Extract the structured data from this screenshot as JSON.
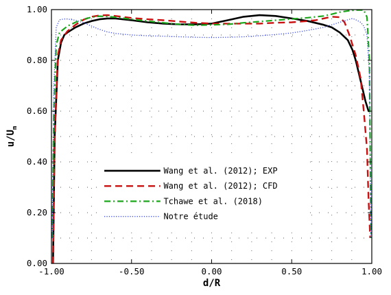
{
  "chart_data": {
    "type": "line",
    "title": "",
    "xlabel": "d/R",
    "ylabel_main": "u/U",
    "ylabel_sub": "m",
    "xlim": [
      -1.0,
      1.0
    ],
    "ylim": [
      0.0,
      1.0
    ],
    "x_ticks": [
      -1.0,
      -0.5,
      0.0,
      0.5,
      1.0
    ],
    "x_tick_labels": [
      "-1.00",
      "-0.50",
      "0.00",
      "0.50",
      "1.00"
    ],
    "y_ticks": [
      0.0,
      0.2,
      0.4,
      0.6,
      0.8,
      1.0
    ],
    "y_tick_labels": [
      "0.00",
      "0.20",
      "0.40",
      "0.60",
      "0.80",
      "1.00"
    ],
    "grid": "dotted",
    "legend_position": "lower-center",
    "series": [
      {
        "name": "Wang et al. (2012); EXP",
        "color": "#000000",
        "dash": "solid",
        "x": [
          -0.99,
          -0.98,
          -0.96,
          -0.94,
          -0.92,
          -0.9,
          -0.85,
          -0.8,
          -0.75,
          -0.7,
          -0.65,
          -0.6,
          -0.5,
          -0.4,
          -0.3,
          -0.2,
          -0.1,
          0.0,
          0.1,
          0.2,
          0.3,
          0.4,
          0.5,
          0.6,
          0.7,
          0.75,
          0.8,
          0.85,
          0.88,
          0.9,
          0.93,
          0.96,
          0.98,
          0.99
        ],
        "y": [
          0.0,
          0.5,
          0.8,
          0.87,
          0.9,
          0.91,
          0.93,
          0.945,
          0.955,
          0.962,
          0.965,
          0.965,
          0.958,
          0.95,
          0.945,
          0.942,
          0.942,
          0.945,
          0.958,
          0.972,
          0.978,
          0.975,
          0.965,
          0.955,
          0.94,
          0.93,
          0.91,
          0.88,
          0.84,
          0.8,
          0.72,
          0.64,
          0.6,
          0.6
        ]
      },
      {
        "name": "Wang et al. (2012); CFD",
        "color": "#c81010",
        "dash": "dashed",
        "x": [
          -0.99,
          -0.98,
          -0.96,
          -0.94,
          -0.9,
          -0.85,
          -0.8,
          -0.75,
          -0.7,
          -0.65,
          -0.6,
          -0.5,
          -0.4,
          -0.3,
          -0.2,
          -0.1,
          0.0,
          0.1,
          0.2,
          0.3,
          0.4,
          0.5,
          0.6,
          0.65,
          0.7,
          0.75,
          0.8,
          0.83,
          0.86,
          0.9,
          0.93,
          0.95,
          0.97,
          0.98,
          0.99
        ],
        "y": [
          0.0,
          0.5,
          0.82,
          0.88,
          0.915,
          0.94,
          0.96,
          0.972,
          0.977,
          0.978,
          0.975,
          0.967,
          0.962,
          0.958,
          0.953,
          0.948,
          0.945,
          0.945,
          0.945,
          0.945,
          0.948,
          0.95,
          0.955,
          0.958,
          0.965,
          0.972,
          0.97,
          0.95,
          0.9,
          0.82,
          0.73,
          0.6,
          0.45,
          0.25,
          0.1
        ]
      },
      {
        "name": "Tchawe et al. (2018)",
        "color": "#1aa51a",
        "dash": "dashdot",
        "x": [
          -0.995,
          -0.985,
          -0.97,
          -0.95,
          -0.92,
          -0.9,
          -0.85,
          -0.8,
          -0.75,
          -0.7,
          -0.65,
          -0.6,
          -0.5,
          -0.4,
          -0.3,
          -0.2,
          -0.1,
          0.0,
          0.1,
          0.2,
          0.3,
          0.4,
          0.5,
          0.6,
          0.7,
          0.75,
          0.8,
          0.85,
          0.9,
          0.95,
          0.97,
          0.985,
          0.995
        ],
        "y": [
          0.1,
          0.6,
          0.86,
          0.91,
          0.925,
          0.935,
          0.95,
          0.962,
          0.97,
          0.974,
          0.973,
          0.97,
          0.962,
          0.955,
          0.948,
          0.942,
          0.938,
          0.94,
          0.942,
          0.948,
          0.953,
          0.958,
          0.963,
          0.968,
          0.975,
          0.982,
          0.99,
          0.995,
          0.998,
          0.998,
          0.97,
          0.8,
          0.1
        ]
      },
      {
        "name": "Notre étude",
        "color": "#3344ee",
        "dash": "dotted",
        "x": [
          -0.995,
          -0.985,
          -0.97,
          -0.95,
          -0.92,
          -0.9,
          -0.85,
          -0.8,
          -0.75,
          -0.7,
          -0.65,
          -0.6,
          -0.5,
          -0.4,
          -0.3,
          -0.2,
          -0.1,
          0.0,
          0.1,
          0.2,
          0.3,
          0.4,
          0.5,
          0.6,
          0.7,
          0.75,
          0.8,
          0.85,
          0.88,
          0.9,
          0.93,
          0.95,
          0.97,
          0.985,
          0.995
        ],
        "y": [
          0.1,
          0.7,
          0.93,
          0.96,
          0.963,
          0.963,
          0.958,
          0.948,
          0.935,
          0.922,
          0.912,
          0.906,
          0.9,
          0.897,
          0.895,
          0.893,
          0.891,
          0.89,
          0.891,
          0.893,
          0.897,
          0.902,
          0.908,
          0.918,
          0.93,
          0.94,
          0.95,
          0.96,
          0.965,
          0.96,
          0.95,
          0.935,
          0.9,
          0.75,
          0.1
        ]
      }
    ]
  }
}
